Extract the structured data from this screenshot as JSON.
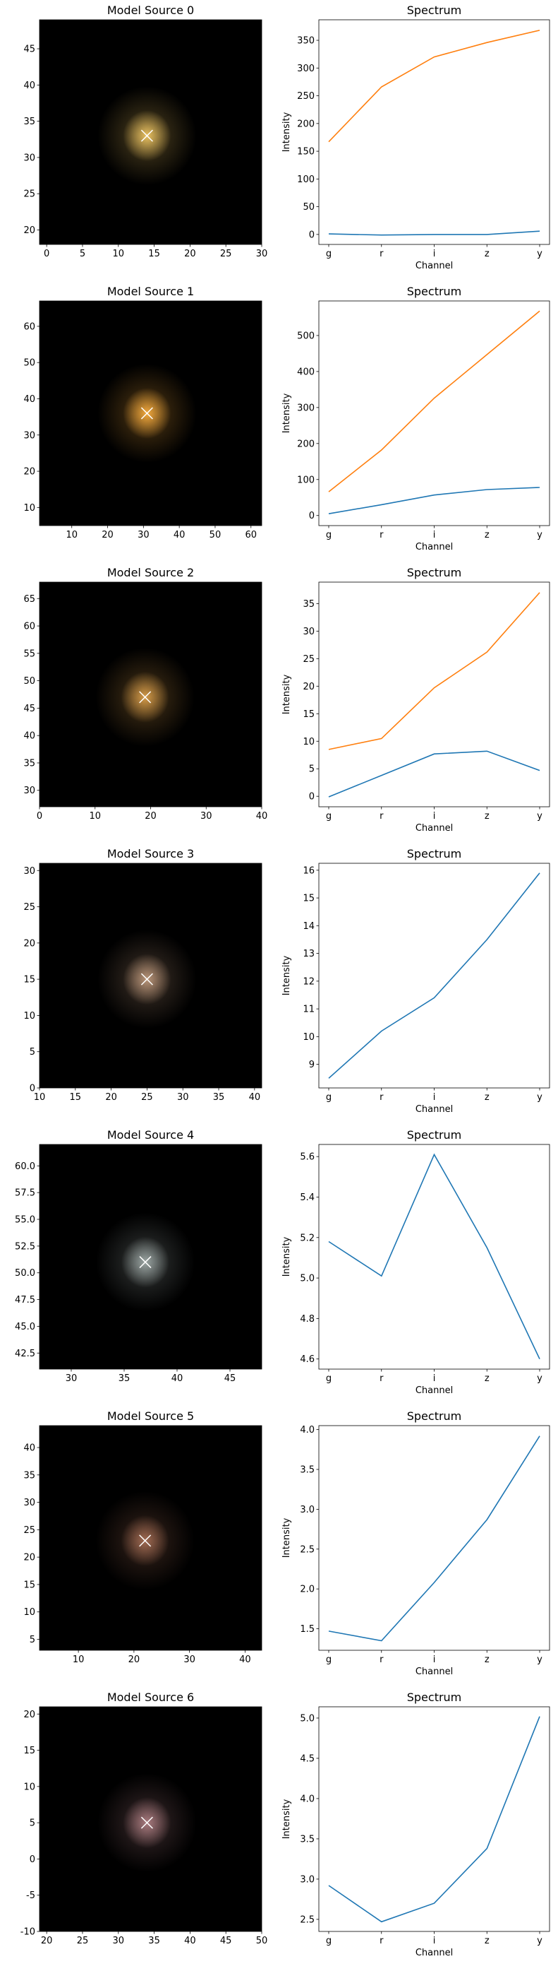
{
  "colors": {
    "series": [
      "#1f77b4",
      "#ff7f0e"
    ],
    "marker": "#ffffff",
    "image_background": "#000000"
  },
  "chart_data": [
    {
      "type": "image",
      "title": "Model Source 0",
      "xlim": [
        -1,
        30
      ],
      "ylim": [
        18,
        49
      ],
      "xticks": [
        0,
        5,
        10,
        15,
        20,
        25,
        30
      ],
      "yticks": [
        20,
        25,
        30,
        35,
        40,
        45
      ],
      "center": [
        14,
        33
      ],
      "color": "#e8c060"
    },
    {
      "type": "line",
      "title": "Spectrum",
      "xlabel": "Channel",
      "ylabel": "Intensity",
      "categories": [
        "g",
        "r",
        "i",
        "z",
        "y"
      ],
      "ylim": [
        -18,
        387
      ],
      "yticks": [
        0,
        50,
        100,
        150,
        200,
        250,
        300,
        350
      ],
      "series": [
        {
          "values": [
            1,
            -1,
            0,
            0,
            6
          ]
        },
        {
          "values": [
            167,
            266,
            320,
            346,
            368
          ]
        }
      ]
    },
    {
      "type": "image",
      "title": "Model Source 1",
      "xlim": [
        1,
        63
      ],
      "ylim": [
        5,
        67
      ],
      "xticks": [
        10,
        20,
        30,
        40,
        50,
        60
      ],
      "yticks": [
        10,
        20,
        30,
        40,
        50,
        60
      ],
      "center": [
        31,
        36
      ],
      "color": "#f2a83c"
    },
    {
      "type": "line",
      "title": "Spectrum",
      "xlabel": "Channel",
      "ylabel": "Intensity",
      "categories": [
        "g",
        "r",
        "i",
        "z",
        "y"
      ],
      "ylim": [
        -28,
        596
      ],
      "yticks": [
        0,
        100,
        200,
        300,
        400,
        500
      ],
      "series": [
        {
          "values": [
            5,
            30,
            57,
            72,
            78
          ]
        },
        {
          "values": [
            66,
            182,
            326,
            447,
            568
          ]
        }
      ]
    },
    {
      "type": "image",
      "title": "Model Source 2",
      "xlim": [
        0,
        40
      ],
      "ylim": [
        27,
        68
      ],
      "xticks": [
        0,
        10,
        20,
        30,
        40
      ],
      "yticks": [
        30,
        35,
        40,
        45,
        50,
        55,
        60,
        65
      ],
      "center": [
        19,
        47
      ],
      "color": "#d49a48"
    },
    {
      "type": "line",
      "title": "Spectrum",
      "xlabel": "Channel",
      "ylabel": "Intensity",
      "categories": [
        "g",
        "r",
        "i",
        "z",
        "y"
      ],
      "ylim": [
        -1.9,
        38.9
      ],
      "yticks": [
        0,
        5,
        10,
        15,
        20,
        25,
        30,
        35
      ],
      "series": [
        {
          "values": [
            -0.1,
            3.8,
            7.7,
            8.2,
            4.7
          ]
        },
        {
          "values": [
            8.5,
            10.5,
            19.7,
            26.2,
            37.0
          ]
        }
      ]
    },
    {
      "type": "image",
      "title": "Model Source 3",
      "xlim": [
        10,
        41
      ],
      "ylim": [
        0,
        31
      ],
      "xticks": [
        10,
        15,
        20,
        25,
        30,
        35,
        40
      ],
      "yticks": [
        0,
        5,
        10,
        15,
        20,
        25,
        30
      ],
      "center": [
        25,
        15
      ],
      "color": "#b89478"
    },
    {
      "type": "line",
      "title": "Spectrum",
      "xlabel": "Channel",
      "ylabel": "Intensity",
      "categories": [
        "g",
        "r",
        "i",
        "z",
        "y"
      ],
      "ylim": [
        8.15,
        16.25
      ],
      "yticks": [
        9,
        10,
        11,
        12,
        13,
        14,
        15,
        16
      ],
      "series": [
        {
          "values": [
            8.5,
            10.2,
            11.4,
            13.5,
            15.9
          ]
        }
      ]
    },
    {
      "type": "image",
      "title": "Model Source 4",
      "xlim": [
        27,
        48
      ],
      "ylim": [
        41,
        62
      ],
      "xticks": [
        30,
        35,
        40,
        45
      ],
      "yticks": [
        42.5,
        45.0,
        47.5,
        50.0,
        52.5,
        55.0,
        57.5,
        60.0
      ],
      "tick_labels_y": [
        "42.5",
        "45.0",
        "47.5",
        "50.0",
        "52.5",
        "55.0",
        "57.5",
        "60.0"
      ],
      "center": [
        37,
        51
      ],
      "color": "#9aa4a2"
    },
    {
      "type": "line",
      "title": "Spectrum",
      "xlabel": "Channel",
      "ylabel": "Intensity",
      "categories": [
        "g",
        "r",
        "i",
        "z",
        "y"
      ],
      "ylim": [
        4.55,
        5.66
      ],
      "yticks": [
        4.6,
        4.8,
        5.0,
        5.2,
        5.4,
        5.6
      ],
      "tick_labels_y": [
        "4.6",
        "4.8",
        "5.0",
        "5.2",
        "5.4",
        "5.6"
      ],
      "series": [
        {
          "values": [
            5.18,
            5.01,
            5.61,
            5.15,
            4.6
          ]
        }
      ]
    },
    {
      "type": "image",
      "title": "Model Source 5",
      "xlim": [
        3,
        43
      ],
      "ylim": [
        3,
        44
      ],
      "xticks": [
        10,
        20,
        30,
        40
      ],
      "yticks": [
        5,
        10,
        15,
        20,
        25,
        30,
        35,
        40
      ],
      "center": [
        22,
        23
      ],
      "color": "#a06a52"
    },
    {
      "type": "line",
      "title": "Spectrum",
      "xlabel": "Channel",
      "ylabel": "Intensity",
      "categories": [
        "g",
        "r",
        "i",
        "z",
        "y"
      ],
      "ylim": [
        1.23,
        4.05
      ],
      "yticks": [
        1.5,
        2.0,
        2.5,
        3.0,
        3.5,
        4.0
      ],
      "tick_labels_y": [
        "1.5",
        "2.0",
        "2.5",
        "3.0",
        "3.5",
        "4.0"
      ],
      "series": [
        {
          "values": [
            1.47,
            1.35,
            2.08,
            2.87,
            3.92
          ]
        }
      ]
    },
    {
      "type": "image",
      "title": "Model Source 6",
      "xlim": [
        19,
        50
      ],
      "ylim": [
        -10,
        21
      ],
      "xticks": [
        20,
        25,
        30,
        35,
        40,
        45,
        50
      ],
      "yticks": [
        -10,
        -5,
        0,
        5,
        10,
        15,
        20
      ],
      "center": [
        34,
        5
      ],
      "color": "#a87a7e"
    },
    {
      "type": "line",
      "title": "Spectrum",
      "xlabel": "Channel",
      "ylabel": "Intensity",
      "categories": [
        "g",
        "r",
        "i",
        "z",
        "y"
      ],
      "ylim": [
        2.35,
        5.14
      ],
      "yticks": [
        2.5,
        3.0,
        3.5,
        4.0,
        4.5,
        5.0
      ],
      "tick_labels_y": [
        "2.5",
        "3.0",
        "3.5",
        "4.0",
        "4.5",
        "5.0"
      ],
      "series": [
        {
          "values": [
            2.92,
            2.47,
            2.7,
            3.38,
            5.02
          ]
        }
      ]
    }
  ]
}
